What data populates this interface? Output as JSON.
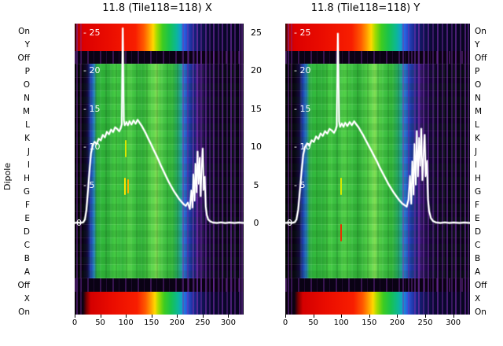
{
  "figure": {
    "title_left": "11.8 (Tile118=118) X",
    "title_right": "11.8 (Tile118=118) Y",
    "y_axis_label": "Dipole",
    "dipole_labels": [
      "On",
      "Y",
      "Off",
      "P",
      "O",
      "N",
      "M",
      "L",
      "K",
      "J",
      "I",
      "H",
      "G",
      "F",
      "E",
      "D",
      "C",
      "B",
      "A",
      "Off",
      "X",
      "On"
    ],
    "power_tick_labels": [
      "25",
      "20",
      "15",
      "10",
      "5",
      "0"
    ],
    "x_tick_labels": [
      "0",
      "50",
      "100",
      "150",
      "200",
      "250",
      "300"
    ]
  },
  "chart_data": {
    "type": "heatmap",
    "title": "11.8 (Tile118=118)",
    "x_range": [
      0,
      330
    ],
    "x_ticks": [
      0,
      50,
      100,
      150,
      200,
      250,
      300
    ],
    "value_ticks": [
      25,
      20,
      15,
      10,
      5,
      0
    ],
    "in_plot_tick_labels": [
      "- 25",
      "- 20",
      "- 15",
      "- 10",
      "- 5",
      "0"
    ],
    "y_categories": [
      "On",
      "Y",
      "Off",
      "P",
      "O",
      "N",
      "M",
      "L",
      "K",
      "J",
      "I",
      "H",
      "G",
      "F",
      "E",
      "D",
      "C",
      "B",
      "A",
      "Off",
      "X",
      "On"
    ],
    "colormap": {
      "line_color": "#ffffff",
      "background": "#000000",
      "streak_color": "#7a2fae",
      "main_stops": [
        [
          0,
          "#000000"
        ],
        [
          4.5,
          "#06020c"
        ],
        [
          7.5,
          "#140a3a"
        ],
        [
          9.5,
          "#1e3fae"
        ],
        [
          11.5,
          "#2a86c0"
        ],
        [
          13,
          "#2fae46"
        ],
        [
          16,
          "#33bb3c"
        ],
        [
          20,
          "#2fb03a"
        ],
        [
          24,
          "#46cc44"
        ],
        [
          28,
          "#36ba3e"
        ],
        [
          32,
          "#52d148"
        ],
        [
          36,
          "#3cc040"
        ],
        [
          40,
          "#30b038"
        ],
        [
          44,
          "#4ecd46"
        ],
        [
          47,
          "#66d94e"
        ],
        [
          48.5,
          "#82de54"
        ],
        [
          50,
          "#5ad24b"
        ],
        [
          54,
          "#3ec142"
        ],
        [
          58,
          "#30b43a"
        ],
        [
          61,
          "#28a868"
        ],
        [
          63,
          "#209e9e"
        ],
        [
          65,
          "#2a6ed0"
        ],
        [
          67,
          "#2546be"
        ],
        [
          69,
          "#1c2f96"
        ],
        [
          71,
          "#1a1f78"
        ],
        [
          72.5,
          "#461e8c"
        ],
        [
          74,
          "#2e1060"
        ],
        [
          77,
          "#1a0842"
        ],
        [
          81,
          "#10052a"
        ],
        [
          86,
          "#0a031a"
        ],
        [
          100,
          "#060212"
        ]
      ],
      "strip_top_stops": [
        [
          0,
          "#180000"
        ],
        [
          1.5,
          "#b40000"
        ],
        [
          5,
          "#dc0000"
        ],
        [
          20,
          "#ea0c00"
        ],
        [
          36,
          "#f81e00"
        ],
        [
          41,
          "#ff5a00"
        ],
        [
          44,
          "#ff9c00"
        ],
        [
          46.5,
          "#ffd800"
        ],
        [
          48.5,
          "#a8dc00"
        ],
        [
          52,
          "#3ecc20"
        ],
        [
          56,
          "#18c24e"
        ],
        [
          60,
          "#0cb894"
        ],
        [
          62.5,
          "#12a0c8"
        ],
        [
          65,
          "#2a5ce0"
        ],
        [
          68,
          "#2138ac"
        ],
        [
          71,
          "#17207c"
        ],
        [
          75,
          "#101252"
        ],
        [
          80,
          "#0b0832"
        ],
        [
          100,
          "#07041c"
        ]
      ],
      "strip_bottom_stops": [
        [
          0,
          "#050008"
        ],
        [
          5,
          "#0c0212"
        ],
        [
          7,
          "#7c0000"
        ],
        [
          9.5,
          "#d40000"
        ],
        [
          22,
          "#ea0c00"
        ],
        [
          37,
          "#f81e00"
        ],
        [
          42,
          "#ff5a00"
        ],
        [
          45,
          "#ff9c00"
        ],
        [
          47.5,
          "#ffd800"
        ],
        [
          49.5,
          "#a8dc00"
        ],
        [
          53,
          "#3ecc20"
        ],
        [
          57,
          "#18c24e"
        ],
        [
          61,
          "#0cb894"
        ],
        [
          63.5,
          "#12a0c8"
        ],
        [
          66,
          "#2a5ce0"
        ],
        [
          69,
          "#2138ac"
        ],
        [
          72,
          "#17207c"
        ],
        [
          76,
          "#101252"
        ],
        [
          81,
          "#0b0832"
        ],
        [
          100,
          "#07041c"
        ]
      ]
    },
    "streaks": [
      [
        1.5,
        0.5
      ],
      [
        3.5,
        0.35
      ],
      [
        64,
        0.45
      ],
      [
        67,
        0.4
      ],
      [
        70,
        0.5
      ],
      [
        72.5,
        0.65
      ],
      [
        75,
        0.45
      ],
      [
        77.5,
        0.55
      ],
      [
        80,
        0.4
      ],
      [
        82.5,
        0.6
      ],
      [
        85,
        0.45
      ],
      [
        87.5,
        0.55
      ],
      [
        90,
        0.4
      ],
      [
        92.5,
        0.6
      ],
      [
        95,
        0.45
      ],
      [
        97.5,
        0.55
      ],
      [
        99.2,
        0.5
      ]
    ],
    "panels": [
      {
        "name": "X",
        "title": "11.8 (Tile118=118) X",
        "line_points": [
          [
            0,
            0.05
          ],
          [
            6,
            0.1
          ],
          [
            12,
            0.05
          ],
          [
            17,
            0.15
          ],
          [
            20,
            0.5
          ],
          [
            23,
            1.8
          ],
          [
            26,
            4.2
          ],
          [
            29,
            7.0
          ],
          [
            32,
            9.2
          ],
          [
            35,
            10.2
          ],
          [
            39,
            10.7
          ],
          [
            43,
            10.4
          ],
          [
            47,
            11.1
          ],
          [
            51,
            10.9
          ],
          [
            55,
            11.6
          ],
          [
            59,
            11.3
          ],
          [
            63,
            12.0
          ],
          [
            67,
            11.7
          ],
          [
            71,
            12.3
          ],
          [
            75,
            12.0
          ],
          [
            79,
            12.6
          ],
          [
            83,
            12.4
          ],
          [
            87,
            12.1
          ],
          [
            90,
            12.5
          ],
          [
            92,
            13.0
          ],
          [
            94,
            25.6
          ],
          [
            96,
            13.6
          ],
          [
            98,
            12.9
          ],
          [
            101,
            13.3
          ],
          [
            104,
            12.9
          ],
          [
            107,
            13.4
          ],
          [
            111,
            13.0
          ],
          [
            115,
            13.5
          ],
          [
            119,
            13.1
          ],
          [
            123,
            13.6
          ],
          [
            127,
            13.2
          ],
          [
            131,
            12.8
          ],
          [
            135,
            12.3
          ],
          [
            139,
            11.8
          ],
          [
            144,
            11.1
          ],
          [
            149,
            10.4
          ],
          [
            154,
            9.7
          ],
          [
            159,
            9.0
          ],
          [
            164,
            8.3
          ],
          [
            169,
            7.5
          ],
          [
            174,
            6.8
          ],
          [
            179,
            6.1
          ],
          [
            184,
            5.4
          ],
          [
            189,
            4.8
          ],
          [
            194,
            4.2
          ],
          [
            199,
            3.7
          ],
          [
            204,
            3.2
          ],
          [
            209,
            2.8
          ],
          [
            213,
            2.5
          ],
          [
            217,
            2.3
          ],
          [
            221,
            2.7
          ],
          [
            225,
            1.9
          ],
          [
            228,
            4.3
          ],
          [
            230,
            2.1
          ],
          [
            232,
            6.4
          ],
          [
            234,
            3.0
          ],
          [
            236,
            7.8
          ],
          [
            238,
            4.1
          ],
          [
            240,
            9.4
          ],
          [
            242,
            5.2
          ],
          [
            244,
            8.6
          ],
          [
            246,
            3.6
          ],
          [
            248,
            7.2
          ],
          [
            250,
            9.8
          ],
          [
            252,
            4.4
          ],
          [
            254,
            6.1
          ],
          [
            256,
            2.2
          ],
          [
            258,
            1.1
          ],
          [
            261,
            0.5
          ],
          [
            265,
            0.25
          ],
          [
            270,
            0.1
          ],
          [
            278,
            0.05
          ],
          [
            286,
            0.12
          ],
          [
            294,
            0.04
          ],
          [
            302,
            0.1
          ],
          [
            312,
            0.05
          ],
          [
            321,
            0.1
          ],
          [
            330,
            0.05
          ]
        ],
        "artifacts": [
          {
            "x_pct": 29.8,
            "y0_pct": 40,
            "y1_pct": 46,
            "color": "#d8e800"
          },
          {
            "x_pct": 29.3,
            "y0_pct": 53,
            "y1_pct": 59,
            "color": "#ffe400"
          },
          {
            "x_pct": 31.2,
            "y0_pct": 53.5,
            "y1_pct": 58.5,
            "color": "#ffb400"
          }
        ]
      },
      {
        "name": "Y",
        "title": "11.8 (Tile118=118) Y",
        "line_points": [
          [
            0,
            0.05
          ],
          [
            6,
            0.1
          ],
          [
            12,
            0.05
          ],
          [
            17,
            0.15
          ],
          [
            20,
            0.5
          ],
          [
            23,
            1.8
          ],
          [
            26,
            4.2
          ],
          [
            29,
            6.8
          ],
          [
            32,
            9.0
          ],
          [
            35,
            10.0
          ],
          [
            39,
            10.5
          ],
          [
            43,
            10.2
          ],
          [
            47,
            10.9
          ],
          [
            51,
            10.7
          ],
          [
            55,
            11.4
          ],
          [
            59,
            11.1
          ],
          [
            63,
            11.8
          ],
          [
            67,
            11.5
          ],
          [
            71,
            12.1
          ],
          [
            75,
            11.8
          ],
          [
            79,
            12.4
          ],
          [
            83,
            12.2
          ],
          [
            87,
            11.9
          ],
          [
            90,
            12.3
          ],
          [
            92,
            12.8
          ],
          [
            94,
            24.9
          ],
          [
            96,
            13.4
          ],
          [
            98,
            12.7
          ],
          [
            101,
            13.1
          ],
          [
            104,
            12.7
          ],
          [
            107,
            13.2
          ],
          [
            111,
            12.8
          ],
          [
            115,
            13.3
          ],
          [
            119,
            12.9
          ],
          [
            123,
            13.4
          ],
          [
            127,
            13.0
          ],
          [
            131,
            12.6
          ],
          [
            135,
            12.1
          ],
          [
            139,
            11.6
          ],
          [
            144,
            10.9
          ],
          [
            149,
            10.2
          ],
          [
            154,
            9.5
          ],
          [
            159,
            8.8
          ],
          [
            164,
            8.1
          ],
          [
            169,
            7.3
          ],
          [
            174,
            6.6
          ],
          [
            179,
            5.9
          ],
          [
            184,
            5.2
          ],
          [
            189,
            4.6
          ],
          [
            194,
            4.0
          ],
          [
            199,
            3.5
          ],
          [
            204,
            3.0
          ],
          [
            209,
            2.6
          ],
          [
            213,
            2.4
          ],
          [
            217,
            2.2
          ],
          [
            220,
            3.1
          ],
          [
            223,
            6.2
          ],
          [
            225,
            2.6
          ],
          [
            227,
            8.1
          ],
          [
            229,
            3.8
          ],
          [
            231,
            10.4
          ],
          [
            233,
            5.1
          ],
          [
            235,
            12.1
          ],
          [
            237,
            6.2
          ],
          [
            239,
            11.2
          ],
          [
            241,
            7.6
          ],
          [
            243,
            12.4
          ],
          [
            245,
            5.7
          ],
          [
            247,
            9.1
          ],
          [
            249,
            11.6
          ],
          [
            251,
            6.2
          ],
          [
            253,
            8.2
          ],
          [
            255,
            3.1
          ],
          [
            257,
            1.6
          ],
          [
            260,
            0.7
          ],
          [
            264,
            0.3
          ],
          [
            269,
            0.12
          ],
          [
            277,
            0.05
          ],
          [
            285,
            0.12
          ],
          [
            293,
            0.05
          ],
          [
            301,
            0.1
          ],
          [
            311,
            0.05
          ],
          [
            320,
            0.1
          ],
          [
            330,
            0.05
          ]
        ],
        "artifacts": [
          {
            "x_pct": 29.8,
            "y0_pct": 53,
            "y1_pct": 59,
            "color": "#d8e800"
          },
          {
            "x_pct": 29.8,
            "y0_pct": 69,
            "y1_pct": 75,
            "color": "#e83000"
          }
        ]
      }
    ]
  }
}
